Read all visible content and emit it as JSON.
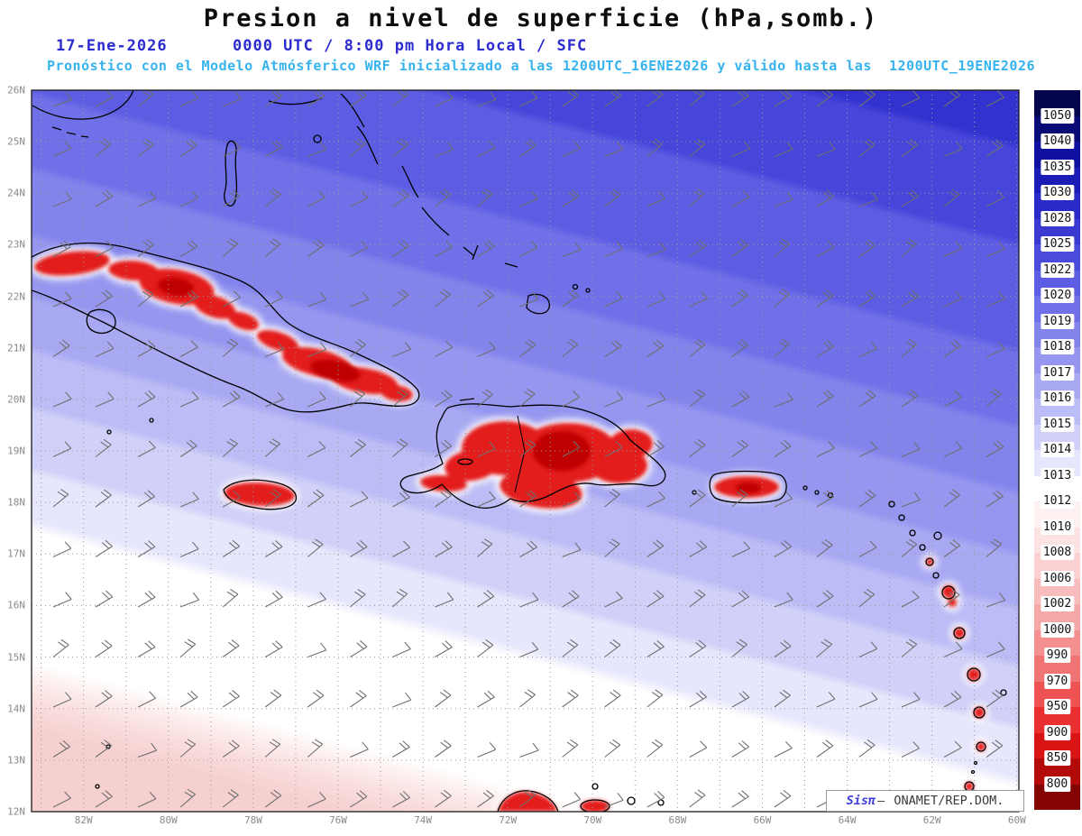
{
  "title": "Presion a nivel de superficie (hPa,somb.)",
  "header": {
    "date": "17-Ene-2026",
    "time": "0000 UTC / 8:00 pm Hora Local / SFC",
    "model_info": "Pronóstico con el Modelo Atmósferico WRF inicializado a las 1200UTC_16ENE2026 y válido hasta las  1200UTC_19ENE2026"
  },
  "map": {
    "field": "surface pressure (hPa, shaded) with wind barbs",
    "lat_labels": [
      "26N",
      "25N",
      "24N",
      "23N",
      "22N",
      "21N",
      "20N",
      "19N",
      "18N",
      "17N",
      "16N",
      "15N",
      "14N",
      "13N",
      "12N"
    ],
    "lon_labels": [
      "82W",
      "80W",
      "78W",
      "76W",
      "74W",
      "72W",
      "70W",
      "68W",
      "66W",
      "64W",
      "62W",
      "60W"
    ]
  },
  "colorbar": {
    "labels": [
      "1050",
      "1040",
      "1035",
      "1030",
      "1028",
      "1025",
      "1022",
      "1020",
      "1019",
      "1018",
      "1017",
      "1016",
      "1015",
      "1014",
      "1013",
      "1012",
      "1010",
      "1008",
      "1006",
      "1002",
      "1000",
      "990",
      "970",
      "950",
      "900",
      "850",
      "800"
    ],
    "colors": [
      "#05054d",
      "#0b0b78",
      "#1111a0",
      "#1b1bb5",
      "#2a2ac6",
      "#3a3ad2",
      "#4b4bdb",
      "#5d5de3",
      "#7070e8",
      "#8383ec",
      "#9696f0",
      "#a9a9f3",
      "#bcbcf6",
      "#d0d0f8",
      "#e6e6fc",
      "#ffffff",
      "#fdf1f1",
      "#fce2e2",
      "#fad0d0",
      "#f8bcbc",
      "#f6a8a8",
      "#f49090",
      "#f17474",
      "#ee5252",
      "#e92f2f",
      "#d81414",
      "#b30a0a",
      "#840303"
    ]
  },
  "attribution": {
    "brand": "Sisπ",
    "separator": "— ",
    "org": "ONAMET/REP.DOM."
  },
  "colors": {
    "title_text": "#0d0d0d",
    "date_line": "#2b2bd0",
    "model_line": "#36b3ef",
    "axis_labels": "#8a8a8a",
    "brand_blue": "#3c3cd8",
    "attribution_text": "#3a3a3a",
    "land_low_pressure_red": "#e31a1a",
    "high_pressure_blue": "#3232cf"
  }
}
